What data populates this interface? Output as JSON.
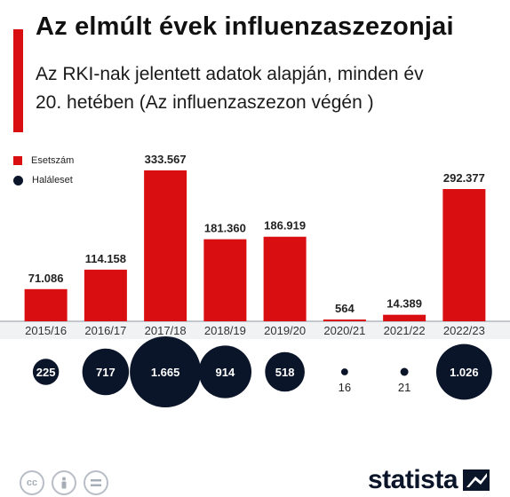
{
  "title": "Az elmúlt évek influenzaszezonjai",
  "subtitle_line1": "Az RKI-nak jelentett adatok alapján, minden év",
  "subtitle_line2": "20. hetében",
  "subtitle_note": "(Az influenzaszezon végén )",
  "legend": {
    "cases": "Esetszám",
    "deaths": "Haláleset"
  },
  "colors": {
    "cases": "#d80e10",
    "deaths": "#0b1529",
    "accent": "#d80e10"
  },
  "footer": {
    "brand": "statista",
    "icons": [
      "cc-icon",
      "person-icon",
      "equals-icon"
    ]
  },
  "chart_data": {
    "type": "bar",
    "categories": [
      "2015/16",
      "2016/17",
      "2017/18",
      "2018/19",
      "2019/20",
      "2020/21",
      "2021/22",
      "2022/23"
    ],
    "series": [
      {
        "name": "Esetszám",
        "values": [
          71086,
          114158,
          333567,
          181360,
          186919,
          564,
          14389,
          292377
        ]
      },
      {
        "name": "Haláleset",
        "values": [
          225,
          717,
          1665,
          914,
          518,
          16,
          21,
          1026
        ]
      }
    ],
    "data_labels": {
      "cases": [
        "71.086",
        "114.158",
        "333.567",
        "181.360",
        "186.919",
        "564",
        "14.389",
        "292.377"
      ],
      "deaths": [
        "225",
        "717",
        "1.665",
        "914",
        "518",
        "16",
        "21",
        "1.026"
      ]
    },
    "legend_position": "top-left",
    "grid": false
  }
}
